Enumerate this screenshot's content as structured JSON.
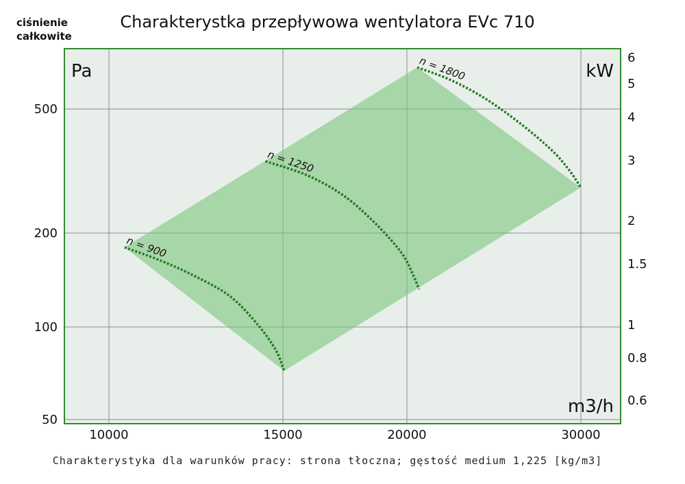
{
  "title": "Charakterystka przepływowa wentylatora EVc 710",
  "corner_label_line1": "ciśnienie",
  "corner_label_line2": "całkowite",
  "footnote": "Charakterystyka dla warunków pracy: strona tłoczna; gęstość medium 1,225 [kg/m3]",
  "colors": {
    "frame": "#2e8b2e",
    "plot_bg": "#e8efea",
    "grid": "#8c8c8c",
    "region_fill": "#7cc47c",
    "curve": "#1f7a1f"
  },
  "chart_data": {
    "type": "area",
    "grid": true,
    "x_axis": {
      "unit": "m3/h",
      "ticks": [
        {
          "value": 10000,
          "label": "10000"
        },
        {
          "value": 15000,
          "label": "15000"
        },
        {
          "value": 20000,
          "label": "20000"
        },
        {
          "value": 30000,
          "label": "30000"
        }
      ]
    },
    "y_axis_left": {
      "unit": "Pa",
      "scale": "log",
      "ticks": [
        {
          "value": 50,
          "label": "50"
        },
        {
          "value": 100,
          "label": "100"
        },
        {
          "value": 200,
          "label": "200"
        },
        {
          "value": 500,
          "label": "500"
        }
      ]
    },
    "y_axis_right": {
      "unit": "kW",
      "ticks": [
        {
          "value": 0.6,
          "label": "0.6"
        },
        {
          "value": 0.8,
          "label": "0.8"
        },
        {
          "value": 1,
          "label": "1"
        },
        {
          "value": 1.5,
          "label": "1.5"
        },
        {
          "value": 2,
          "label": "2"
        },
        {
          "value": 3,
          "label": "3"
        },
        {
          "value": 4,
          "label": "4"
        },
        {
          "value": 5,
          "label": "5"
        },
        {
          "value": 6,
          "label": "6"
        }
      ]
    },
    "region": [
      {
        "x": 10450,
        "y": 180
      },
      {
        "x": 20600,
        "y": 680
      },
      {
        "x": 30000,
        "y": 280
      },
      {
        "x": 15050,
        "y": 72
      }
    ],
    "series": [
      {
        "name": "n = 900",
        "points": [
          {
            "x": 10450,
            "y": 180
          },
          {
            "x": 11500,
            "y": 163
          },
          {
            "x": 12500,
            "y": 145
          },
          {
            "x": 13500,
            "y": 125
          },
          {
            "x": 14300,
            "y": 101
          },
          {
            "x": 14800,
            "y": 84
          },
          {
            "x": 15050,
            "y": 72
          }
        ]
      },
      {
        "name": "n = 1250",
        "points": [
          {
            "x": 14500,
            "y": 340
          },
          {
            "x": 16000,
            "y": 306
          },
          {
            "x": 17500,
            "y": 262
          },
          {
            "x": 18800,
            "y": 212
          },
          {
            "x": 19800,
            "y": 172
          },
          {
            "x": 20400,
            "y": 145
          },
          {
            "x": 20700,
            "y": 132
          }
        ]
      },
      {
        "name": "n = 1800",
        "points": [
          {
            "x": 20600,
            "y": 680
          },
          {
            "x": 22500,
            "y": 620
          },
          {
            "x": 24500,
            "y": 540
          },
          {
            "x": 26500,
            "y": 450
          },
          {
            "x": 28300,
            "y": 370
          },
          {
            "x": 29300,
            "y": 320
          },
          {
            "x": 30000,
            "y": 280
          }
        ]
      }
    ]
  }
}
